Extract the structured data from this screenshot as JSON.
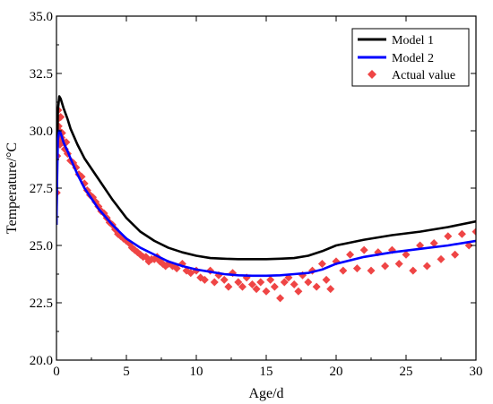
{
  "chart_data": {
    "type": "line",
    "xlabel": "Age/d",
    "ylabel": "Temperature/°C",
    "xlim": [
      0,
      30
    ],
    "ylim": [
      20.0,
      35.0
    ],
    "xticks": [
      0,
      5,
      10,
      15,
      20,
      25,
      30
    ],
    "xtick_labels": [
      "0",
      "5",
      "10",
      "15",
      "20",
      "25",
      "30"
    ],
    "yticks": [
      20.0,
      22.5,
      25.0,
      27.5,
      30.0,
      32.5,
      35.0
    ],
    "ytick_labels": [
      "20.0",
      "22.5",
      "25.0",
      "27.5",
      "30.0",
      "32.5",
      "35.0"
    ],
    "grid": false,
    "legend_position": "top-right",
    "series": [
      {
        "name": "Model 1",
        "kind": "line",
        "color": "#000000",
        "x": [
          0,
          0.05,
          0.1,
          0.2,
          0.3,
          0.5,
          0.8,
          1,
          1.5,
          2,
          3,
          4,
          5,
          6,
          7,
          8,
          9,
          10,
          11,
          12,
          13,
          14,
          15,
          16,
          17,
          18,
          19,
          20,
          22,
          24,
          26,
          28,
          30
        ],
        "y": [
          25.9,
          29.0,
          30.9,
          31.5,
          31.4,
          31.0,
          30.5,
          30.1,
          29.4,
          28.8,
          27.9,
          27.0,
          26.2,
          25.6,
          25.2,
          24.9,
          24.7,
          24.55,
          24.45,
          24.42,
          24.4,
          24.4,
          24.4,
          24.42,
          24.45,
          24.55,
          24.75,
          25.0,
          25.25,
          25.45,
          25.6,
          25.8,
          26.05
        ]
      },
      {
        "name": "Model 2",
        "kind": "line",
        "color": "#0000ff",
        "x": [
          0,
          0.05,
          0.1,
          0.2,
          0.3,
          0.5,
          0.8,
          1,
          1.5,
          2,
          3,
          4,
          5,
          6,
          7,
          8,
          9,
          10,
          11,
          12,
          13,
          14,
          15,
          16,
          17,
          18,
          19,
          20,
          22,
          24,
          26,
          28,
          30
        ],
        "y": [
          25.9,
          28.0,
          29.6,
          30.0,
          29.9,
          29.5,
          29.1,
          28.8,
          28.1,
          27.5,
          26.6,
          25.9,
          25.3,
          24.9,
          24.6,
          24.3,
          24.1,
          23.95,
          23.85,
          23.75,
          23.7,
          23.68,
          23.68,
          23.7,
          23.75,
          23.8,
          23.95,
          24.2,
          24.5,
          24.7,
          24.85,
          25.0,
          25.2
        ]
      },
      {
        "name": "Actual value",
        "kind": "scatter",
        "color": "#ef4545",
        "marker": "diamond",
        "x": [
          0.02,
          0.05,
          0.08,
          0.1,
          0.12,
          0.15,
          0.2,
          0.25,
          0.3,
          0.35,
          0.4,
          0.5,
          0.6,
          0.7,
          0.8,
          1.0,
          1.2,
          1.4,
          1.6,
          1.8,
          2.0,
          2.2,
          2.4,
          2.6,
          2.8,
          3.0,
          3.2,
          3.4,
          3.6,
          3.8,
          4.0,
          4.2,
          4.4,
          4.6,
          4.8,
          5.0,
          5.2,
          5.4,
          5.6,
          5.8,
          6.0,
          6.2,
          6.4,
          6.6,
          6.8,
          7.0,
          7.2,
          7.4,
          7.6,
          7.8,
          8.0,
          8.3,
          8.6,
          9.0,
          9.3,
          9.6,
          10.0,
          10.3,
          10.6,
          11.0,
          11.3,
          11.6,
          12.0,
          12.3,
          12.6,
          13.0,
          13.3,
          13.6,
          14.0,
          14.3,
          14.6,
          15.0,
          15.3,
          15.6,
          16.0,
          16.3,
          16.6,
          17.0,
          17.3,
          17.6,
          18.0,
          18.3,
          18.6,
          19.0,
          19.3,
          19.6,
          20.0,
          20.5,
          21.0,
          21.5,
          22.0,
          22.5,
          23.0,
          23.5,
          24.0,
          24.5,
          25.0,
          25.5,
          26.0,
          26.5,
          27.0,
          27.5,
          28.0,
          28.5,
          29.0,
          29.5,
          30.0
        ],
        "y": [
          27.3,
          28.9,
          30.5,
          29.6,
          30.9,
          30.2,
          30.0,
          29.4,
          30.6,
          29.7,
          29.9,
          29.5,
          29.2,
          29.5,
          29.0,
          28.7,
          28.6,
          28.4,
          28.1,
          28.0,
          27.7,
          27.4,
          27.2,
          27.1,
          26.9,
          26.7,
          26.5,
          26.4,
          26.2,
          26.0,
          25.9,
          25.7,
          25.5,
          25.4,
          25.3,
          25.2,
          25.1,
          24.9,
          24.8,
          24.7,
          24.6,
          24.5,
          24.5,
          24.3,
          24.4,
          24.4,
          24.5,
          24.3,
          24.2,
          24.1,
          24.2,
          24.1,
          24.0,
          24.2,
          23.9,
          23.8,
          23.9,
          23.6,
          23.5,
          23.9,
          23.4,
          23.7,
          23.5,
          23.2,
          23.8,
          23.4,
          23.2,
          23.6,
          23.3,
          23.1,
          23.4,
          23.0,
          23.5,
          23.2,
          22.7,
          23.4,
          23.6,
          23.3,
          23.0,
          23.7,
          23.4,
          23.9,
          23.2,
          24.2,
          23.5,
          23.1,
          24.3,
          23.9,
          24.6,
          24.0,
          24.8,
          23.9,
          24.7,
          24.1,
          24.8,
          24.2,
          24.6,
          23.9,
          25.0,
          24.1,
          25.1,
          24.4,
          25.4,
          24.6,
          25.5,
          25.0,
          25.6
        ]
      }
    ]
  }
}
